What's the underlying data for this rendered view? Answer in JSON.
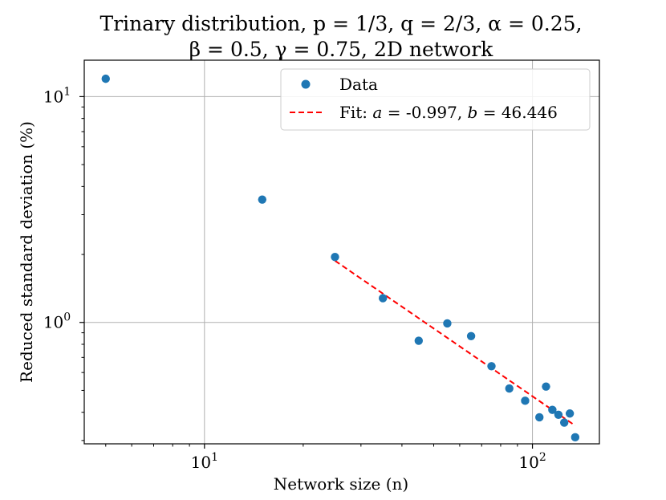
{
  "chart_data": {
    "type": "scatter",
    "title_line1": "Trinary distribution, p = 1/3, q = 2/3, α = 0.25,",
    "title_line2": "β = 0.5, γ = 0.75, 2D network",
    "xlabel": "Network size (n)",
    "ylabel": "Reduced standard deviation (%)",
    "xscale": "log",
    "yscale": "log",
    "xlim": [
      4.3,
      160
    ],
    "ylim": [
      0.29,
      14.5
    ],
    "x_ticks": [
      {
        "base": "10",
        "exp": "1",
        "value": 10
      },
      {
        "base": "10",
        "exp": "2",
        "value": 100
      }
    ],
    "y_ticks": [
      {
        "base": "10",
        "exp": "0",
        "value": 1
      },
      {
        "base": "10",
        "exp": "1",
        "value": 10
      }
    ],
    "grid": true,
    "series": [
      {
        "name": "Data",
        "color": "#1f77b4",
        "x": [
          5,
          15,
          25,
          35,
          45,
          55,
          65,
          75,
          85,
          95,
          105,
          110,
          115,
          120,
          125,
          130,
          135
        ],
        "y": [
          12.0,
          3.5,
          1.95,
          1.28,
          0.83,
          0.99,
          0.87,
          0.64,
          0.51,
          0.45,
          0.38,
          0.52,
          0.41,
          0.39,
          0.36,
          0.395,
          0.31
        ]
      }
    ],
    "fit": {
      "name": "Fit: a = -0.997, b = 46.446",
      "color": "#ff0000",
      "a": -0.997,
      "b": 46.446,
      "x_range": [
        25,
        135
      ]
    },
    "legend": {
      "placement": "top-right",
      "data_label": "Data",
      "fit_prefix": "Fit: ",
      "fit_a_sym": "a",
      "fit_a_val": " = -0.997, ",
      "fit_b_sym": "b",
      "fit_b_val": " = 46.446"
    }
  }
}
